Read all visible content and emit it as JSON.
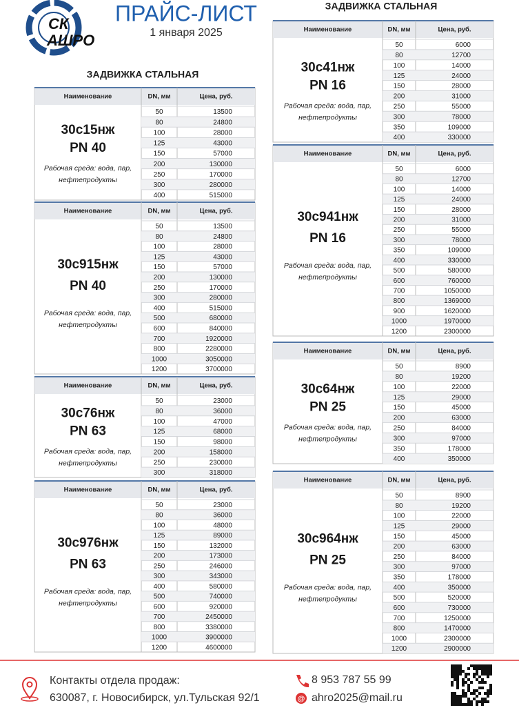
{
  "header": {
    "logo_top": "СК",
    "logo_bottom": "АШРО",
    "title": "ПРАЙС-ЛИСТ",
    "date": "1 января 2025"
  },
  "columns": [
    {
      "section_title": "ЗАДВИЖКА СТАЛЬНАЯ",
      "tables": [
        {
          "headers": [
            "Наименование",
            "DN, мм",
            "Цена, руб."
          ],
          "name": "30с15нж",
          "pn": "PN 40",
          "medium": [
            "Рабочая среда: вода, пар,",
            "нефтепродукты"
          ],
          "rows": [
            [
              50,
              13500
            ],
            [
              80,
              24800
            ],
            [
              100,
              28000
            ],
            [
              125,
              43000
            ],
            [
              150,
              57000
            ],
            [
              200,
              130000
            ],
            [
              250,
              170000
            ],
            [
              300,
              280000
            ],
            [
              400,
              515000
            ]
          ]
        },
        {
          "headers": [
            "Наименование",
            "DN, мм",
            "Цена, руб."
          ],
          "name": "30с915нж",
          "pn": "PN 40",
          "medium": [
            "Рабочая среда: вода, пар,",
            "нефтепродукты"
          ],
          "rows": [
            [
              50,
              13500
            ],
            [
              80,
              24800
            ],
            [
              100,
              28000
            ],
            [
              125,
              43000
            ],
            [
              150,
              57000
            ],
            [
              200,
              130000
            ],
            [
              250,
              170000
            ],
            [
              300,
              280000
            ],
            [
              400,
              515000
            ],
            [
              500,
              680000
            ],
            [
              600,
              840000
            ],
            [
              700,
              1920000
            ],
            [
              800,
              2280000
            ],
            [
              1000,
              3050000
            ],
            [
              1200,
              3700000
            ]
          ]
        },
        {
          "headers": [
            "Наименование",
            "DN, мм",
            "Цена, руб."
          ],
          "name": "30с76нж",
          "pn": "PN 63",
          "medium": [
            "Рабочая среда: вода, пар,",
            "нефтепродукты"
          ],
          "rows": [
            [
              50,
              23000
            ],
            [
              80,
              36000
            ],
            [
              100,
              47000
            ],
            [
              125,
              68000
            ],
            [
              150,
              98000
            ],
            [
              200,
              158000
            ],
            [
              250,
              230000
            ],
            [
              300,
              318000
            ]
          ]
        },
        {
          "headers": [
            "Наименование",
            "DN, мм",
            "Цена, руб."
          ],
          "name": "30с976нж",
          "pn": "PN 63",
          "medium": [
            "Рабочая среда: вода, пар,",
            "нефтепродукты"
          ],
          "rows": [
            [
              50,
              23000
            ],
            [
              80,
              36000
            ],
            [
              100,
              48000
            ],
            [
              125,
              89000
            ],
            [
              150,
              132000
            ],
            [
              200,
              173000
            ],
            [
              250,
              246000
            ],
            [
              300,
              343000
            ],
            [
              400,
              580000
            ],
            [
              500,
              740000
            ],
            [
              600,
              920000
            ],
            [
              700,
              2450000
            ],
            [
              800,
              3380000
            ],
            [
              1000,
              3900000
            ],
            [
              1200,
              4600000
            ]
          ]
        }
      ]
    },
    {
      "section_title": "ЗАДВИЖКА СТАЛЬНАЯ",
      "tables": [
        {
          "headers": [
            "Наименование",
            "DN, мм",
            "Цена, руб."
          ],
          "name": "30с41нж",
          "pn": "PN 16",
          "medium": [
            "Рабочая среда: вода, пар,",
            "нефтепродукты"
          ],
          "rows": [
            [
              50,
              6000
            ],
            [
              80,
              12700
            ],
            [
              100,
              14000
            ],
            [
              125,
              24000
            ],
            [
              150,
              28000
            ],
            [
              200,
              31000
            ],
            [
              250,
              55000
            ],
            [
              300,
              78000
            ],
            [
              350,
              109000
            ],
            [
              400,
              330000
            ]
          ]
        },
        {
          "headers": [
            "Наименование",
            "DN, мм",
            "Цена, руб."
          ],
          "name": "30с941нж",
          "pn": "PN 16",
          "medium": [
            "Рабочая среда: вода, пар,",
            "нефтепродукты"
          ],
          "rows": [
            [
              50,
              6000
            ],
            [
              80,
              12700
            ],
            [
              100,
              14000
            ],
            [
              125,
              24000
            ],
            [
              150,
              28000
            ],
            [
              200,
              31000
            ],
            [
              250,
              55000
            ],
            [
              300,
              78000
            ],
            [
              350,
              109000
            ],
            [
              400,
              330000
            ],
            [
              500,
              580000
            ],
            [
              600,
              760000
            ],
            [
              700,
              1050000
            ],
            [
              800,
              1369000
            ],
            [
              900,
              1620000
            ],
            [
              1000,
              1970000
            ],
            [
              1200,
              2300000
            ]
          ]
        },
        {
          "headers": [
            "Наименование",
            "DN, мм",
            "Цена, руб."
          ],
          "name": "30с64нж",
          "pn": "PN 25",
          "medium": [
            "Рабочая среда: вода, пар,",
            "нефтепродукты"
          ],
          "rows": [
            [
              50,
              8900
            ],
            [
              80,
              19200
            ],
            [
              100,
              22000
            ],
            [
              125,
              29000
            ],
            [
              150,
              45000
            ],
            [
              200,
              63000
            ],
            [
              250,
              84000
            ],
            [
              300,
              97000
            ],
            [
              350,
              178000
            ],
            [
              400,
              350000
            ]
          ]
        },
        {
          "headers": [
            "Наименование",
            "DN, мм",
            "Цена, руб."
          ],
          "name": "30с964нж",
          "pn": "PN 25",
          "medium": [
            "Рабочая среда: вода, пар,",
            "нефтепродукты"
          ],
          "rows": [
            [
              50,
              8900
            ],
            [
              80,
              19200
            ],
            [
              100,
              22000
            ],
            [
              125,
              29000
            ],
            [
              150,
              45000
            ],
            [
              200,
              63000
            ],
            [
              250,
              84000
            ],
            [
              300,
              97000
            ],
            [
              350,
              178000
            ],
            [
              400,
              350000
            ],
            [
              500,
              520000
            ],
            [
              600,
              730000
            ],
            [
              700,
              1250000
            ],
            [
              800,
              1470000
            ],
            [
              1000,
              2300000
            ],
            [
              1200,
              2900000
            ]
          ]
        }
      ]
    }
  ],
  "footer": {
    "contacts_label": "Контакты отдела продаж:",
    "address": "630087, г. Новосибирск, ул.Тульская 92/1",
    "phone": "8 953 787 55 99",
    "email": "ahro2025@mail.ru"
  }
}
